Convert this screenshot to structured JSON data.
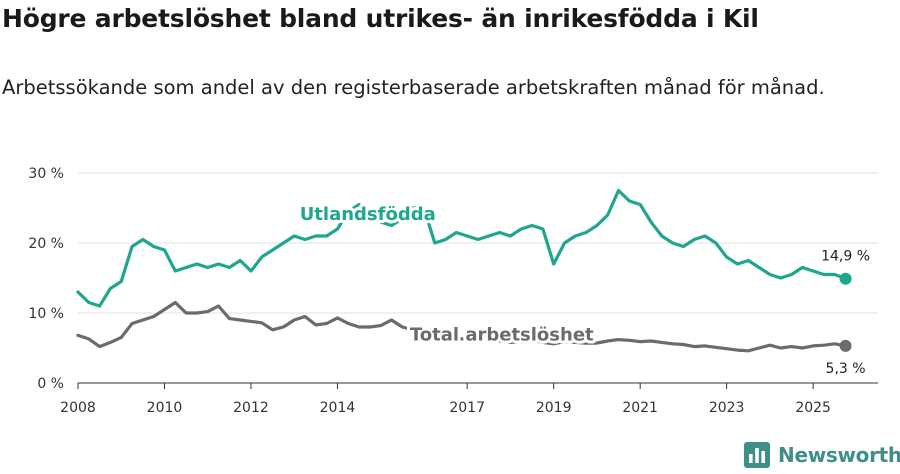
{
  "title": "Högre arbetslöshet bland utrikes- än inrikesfödda i Kil",
  "subtitle": "Arbetssökande som andel av den registerbaserade arbetskraften månad för månad.",
  "brand": {
    "name": "Newsworthy",
    "icon": "newsworthy-bar-chart-icon",
    "color": "#3f8f86"
  },
  "chart_data": {
    "type": "line",
    "ylim": [
      0,
      30
    ],
    "xlim": [
      2008,
      2026.5
    ],
    "y_ticks": [
      0,
      10,
      20,
      30
    ],
    "y_tick_labels": [
      "0 %",
      "10 %",
      "20 %",
      "30 %"
    ],
    "x_ticks": [
      2008,
      2010,
      2012,
      2014,
      2017,
      2019,
      2021,
      2023,
      2025
    ],
    "x_tick_labels": [
      "2008",
      "2010",
      "2012",
      "2014",
      "2017",
      "2019",
      "2021",
      "2023",
      "2025"
    ],
    "grid": true,
    "series": [
      {
        "name": "Utlandsfödda",
        "color": "#1fa68f",
        "end_label": "14,9 %",
        "x": [
          2008.0,
          2008.25,
          2008.5,
          2008.75,
          2009.0,
          2009.25,
          2009.5,
          2009.75,
          2010.0,
          2010.25,
          2010.5,
          2010.75,
          2011.0,
          2011.25,
          2011.5,
          2011.75,
          2012.0,
          2012.25,
          2012.5,
          2012.75,
          2013.0,
          2013.25,
          2013.5,
          2013.75,
          2014.0,
          2014.25,
          2014.5,
          2014.75,
          2015.0,
          2015.25,
          2015.5,
          2015.75,
          2016.0,
          2016.25,
          2016.5,
          2016.75,
          2017.0,
          2017.25,
          2017.5,
          2017.75,
          2018.0,
          2018.25,
          2018.5,
          2018.75,
          2019.0,
          2019.25,
          2019.5,
          2019.75,
          2020.0,
          2020.25,
          2020.5,
          2020.75,
          2021.0,
          2021.25,
          2021.5,
          2021.75,
          2022.0,
          2022.25,
          2022.5,
          2022.75,
          2023.0,
          2023.25,
          2023.5,
          2023.75,
          2024.0,
          2024.25,
          2024.5,
          2024.75,
          2025.0,
          2025.25,
          2025.5,
          2025.75
        ],
        "values": [
          13.0,
          11.5,
          11.0,
          13.5,
          14.5,
          19.5,
          20.5,
          19.5,
          19.0,
          16.0,
          16.5,
          17.0,
          16.5,
          17.0,
          16.5,
          17.5,
          16.0,
          18.0,
          19.0,
          20.0,
          21.0,
          20.5,
          21.0,
          21.0,
          22.0,
          24.5,
          25.5,
          24.5,
          23.0,
          22.5,
          23.5,
          25.0,
          25.0,
          20.0,
          20.5,
          21.5,
          21.0,
          20.5,
          21.0,
          21.5,
          21.0,
          22.0,
          22.5,
          22.0,
          17.0,
          20.0,
          21.0,
          21.5,
          22.5,
          24.0,
          27.5,
          26.0,
          25.5,
          23.0,
          21.0,
          20.0,
          19.5,
          20.5,
          21.0,
          20.0,
          18.0,
          17.0,
          17.5,
          16.5,
          15.5,
          15.0,
          15.5,
          16.5,
          16.0,
          15.5,
          15.5,
          14.9
        ]
      },
      {
        "name": "Total arbetslöshet",
        "color": "#6b6b6b",
        "end_label": "5,3 %",
        "x": [
          2008.0,
          2008.25,
          2008.5,
          2008.75,
          2009.0,
          2009.25,
          2009.5,
          2009.75,
          2010.0,
          2010.25,
          2010.5,
          2010.75,
          2011.0,
          2011.25,
          2011.5,
          2011.75,
          2012.0,
          2012.25,
          2012.5,
          2012.75,
          2013.0,
          2013.25,
          2013.5,
          2013.75,
          2014.0,
          2014.25,
          2014.5,
          2014.75,
          2015.0,
          2015.25,
          2015.5,
          2015.75,
          2016.0,
          2016.25,
          2016.5,
          2016.75,
          2017.0,
          2017.25,
          2017.5,
          2017.75,
          2018.0,
          2018.25,
          2018.5,
          2018.75,
          2019.0,
          2019.25,
          2019.5,
          2019.75,
          2020.0,
          2020.25,
          2020.5,
          2020.75,
          2021.0,
          2021.25,
          2021.5,
          2021.75,
          2022.0,
          2022.25,
          2022.5,
          2022.75,
          2023.0,
          2023.25,
          2023.5,
          2023.75,
          2024.0,
          2024.25,
          2024.5,
          2024.75,
          2025.0,
          2025.25,
          2025.5,
          2025.75
        ],
        "values": [
          6.8,
          6.3,
          5.2,
          5.8,
          6.5,
          8.5,
          9.0,
          9.5,
          10.5,
          11.5,
          10.0,
          10.0,
          10.2,
          11.0,
          9.2,
          9.0,
          8.8,
          8.6,
          7.6,
          8.0,
          9.0,
          9.5,
          8.3,
          8.5,
          9.3,
          8.5,
          8.0,
          8.0,
          8.2,
          9.0,
          8.0,
          7.6,
          7.5,
          7.4,
          7.6,
          6.2,
          6.4,
          6.8,
          6.4,
          6.0,
          5.8,
          5.9,
          6.1,
          5.8,
          5.6,
          5.9,
          5.8,
          5.7,
          5.7,
          6.0,
          6.2,
          6.1,
          5.9,
          6.0,
          5.8,
          5.6,
          5.5,
          5.2,
          5.3,
          5.1,
          4.9,
          4.7,
          4.6,
          5.0,
          5.4,
          5.0,
          5.2,
          5.0,
          5.3,
          5.4,
          5.6,
          5.3
        ]
      }
    ],
    "series_labels": [
      {
        "series": "Utlandsfödda",
        "text": "Utlandsfödda",
        "at_x": 2014.7,
        "at_y": 23.3
      },
      {
        "series": "Total arbetslöshet",
        "text": "Total arbetslöshet",
        "at_x": 2017.8,
        "at_y": 6.1
      }
    ]
  }
}
